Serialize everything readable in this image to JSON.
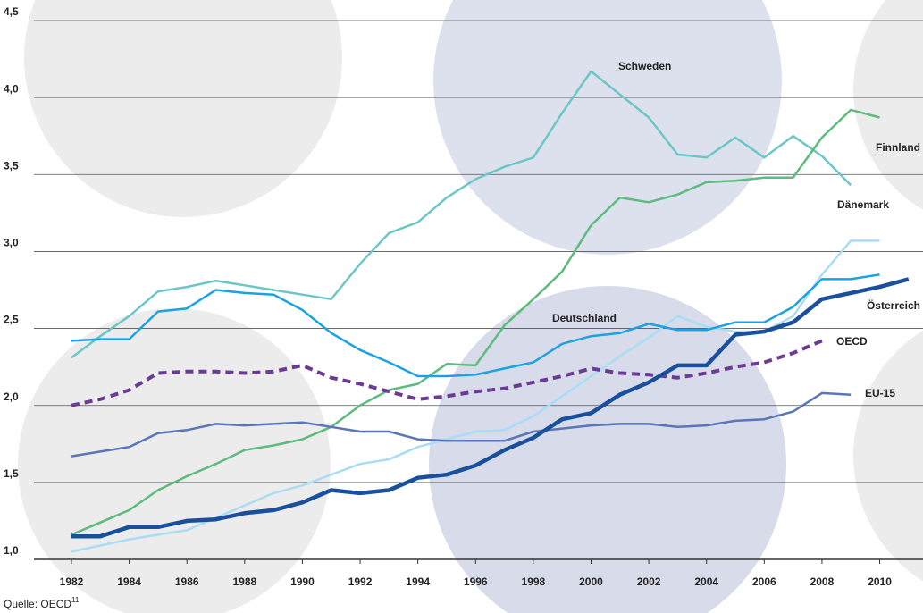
{
  "chart_data": {
    "type": "line",
    "x": [
      1982,
      1983,
      1984,
      1985,
      1986,
      1987,
      1988,
      1989,
      1990,
      1991,
      1992,
      1993,
      1994,
      1995,
      1996,
      1997,
      1998,
      1999,
      2000,
      2001,
      2002,
      2003,
      2004,
      2005,
      2006,
      2007,
      2008,
      2009,
      2010,
      2011
    ],
    "xlim": [
      1980.7,
      2011.5
    ],
    "xticks": [
      1982,
      1984,
      1986,
      1988,
      1990,
      1992,
      1994,
      1996,
      1998,
      2000,
      2002,
      2004,
      2006,
      2008,
      2010
    ],
    "ylim": [
      1,
      4.5
    ],
    "yticks": [
      {
        "value": 1,
        "label": "1,0"
      },
      {
        "value": 1.5,
        "label": "1,5"
      },
      {
        "value": 2,
        "label": "2,0"
      },
      {
        "value": 2.5,
        "label": "2,5"
      },
      {
        "value": 3,
        "label": "3,0"
      },
      {
        "value": 3.5,
        "label": "3,5"
      },
      {
        "value": 4,
        "label": "4,0"
      },
      {
        "value": 4.5,
        "label": "4,5"
      }
    ],
    "grid": true,
    "series": [
      {
        "name": "Schweden",
        "color": "#6cc6c6",
        "linewidth": 2.5,
        "dash": false,
        "values": [
          2.31,
          2.45,
          2.58,
          2.74,
          2.77,
          2.81,
          2.78,
          2.75,
          2.72,
          2.69,
          2.92,
          3.12,
          3.19,
          3.35,
          3.47,
          3.55,
          3.61,
          3.9,
          4.17,
          4.02,
          3.87,
          3.63,
          3.61,
          3.74,
          3.61,
          3.75,
          3.62,
          3.43,
          null,
          null
        ]
      },
      {
        "name": "Finnland",
        "color": "#5dbb7e",
        "linewidth": 2.5,
        "dash": false,
        "values": [
          1.16,
          1.24,
          1.32,
          1.45,
          1.54,
          1.62,
          1.71,
          1.74,
          1.78,
          1.86,
          2.0,
          2.1,
          2.14,
          2.27,
          2.26,
          2.52,
          2.69,
          2.87,
          3.17,
          3.35,
          3.32,
          3.37,
          3.45,
          3.46,
          3.48,
          3.48,
          3.74,
          3.92,
          3.87,
          null
        ]
      },
      {
        "name": "Dänemark",
        "color": "#a9dcf5",
        "linewidth": 2.5,
        "dash": false,
        "values": [
          1.05,
          1.09,
          1.13,
          1.16,
          1.19,
          1.27,
          1.35,
          1.43,
          1.48,
          1.55,
          1.62,
          1.65,
          1.73,
          1.78,
          1.83,
          1.84,
          1.93,
          2.06,
          2.19,
          2.32,
          2.44,
          2.58,
          2.51,
          2.48,
          2.48,
          2.58,
          2.85,
          3.07,
          3.07,
          null
        ]
      },
      {
        "name": "Österreich",
        "color": "#1a4f9c",
        "linewidth": 4.5,
        "dash": false,
        "values": [
          1.15,
          1.15,
          1.21,
          1.21,
          1.25,
          1.26,
          1.3,
          1.32,
          1.37,
          1.45,
          1.43,
          1.45,
          1.53,
          1.55,
          1.61,
          1.71,
          1.79,
          1.91,
          1.95,
          2.07,
          2.15,
          2.26,
          2.26,
          2.46,
          2.48,
          2.54,
          2.69,
          2.73,
          2.77,
          2.82
        ]
      },
      {
        "name": "Deutschland",
        "color": "#1aa3e0",
        "linewidth": 2.5,
        "dash": false,
        "values": [
          2.42,
          2.43,
          2.43,
          2.61,
          2.63,
          2.75,
          2.73,
          2.72,
          2.62,
          2.47,
          2.36,
          2.28,
          2.19,
          2.19,
          2.2,
          2.24,
          2.28,
          2.4,
          2.45,
          2.47,
          2.53,
          2.49,
          2.49,
          2.54,
          2.54,
          2.64,
          2.82,
          2.82,
          2.85,
          null
        ]
      },
      {
        "name": "OECD",
        "color": "#6a3a96",
        "linewidth": 4,
        "dash": true,
        "values": [
          2.0,
          2.04,
          2.1,
          2.21,
          2.22,
          2.22,
          2.21,
          2.22,
          2.26,
          2.18,
          2.14,
          2.09,
          2.04,
          2.06,
          2.09,
          2.11,
          2.15,
          2.19,
          2.24,
          2.21,
          2.2,
          2.18,
          2.21,
          2.25,
          2.28,
          2.34,
          2.42,
          null,
          null,
          null
        ]
      },
      {
        "name": "EU-15",
        "color": "#5a75b8",
        "linewidth": 2.5,
        "dash": false,
        "values": [
          1.67,
          1.7,
          1.73,
          1.82,
          1.84,
          1.88,
          1.87,
          1.88,
          1.89,
          1.86,
          1.83,
          1.83,
          1.78,
          1.77,
          1.77,
          1.77,
          1.83,
          1.85,
          1.87,
          1.88,
          1.88,
          1.86,
          1.87,
          1.9,
          1.91,
          1.96,
          2.08,
          2.07,
          null,
          null
        ]
      }
    ],
    "source": {
      "text": "Quelle: OECD",
      "footnote": "11"
    }
  }
}
